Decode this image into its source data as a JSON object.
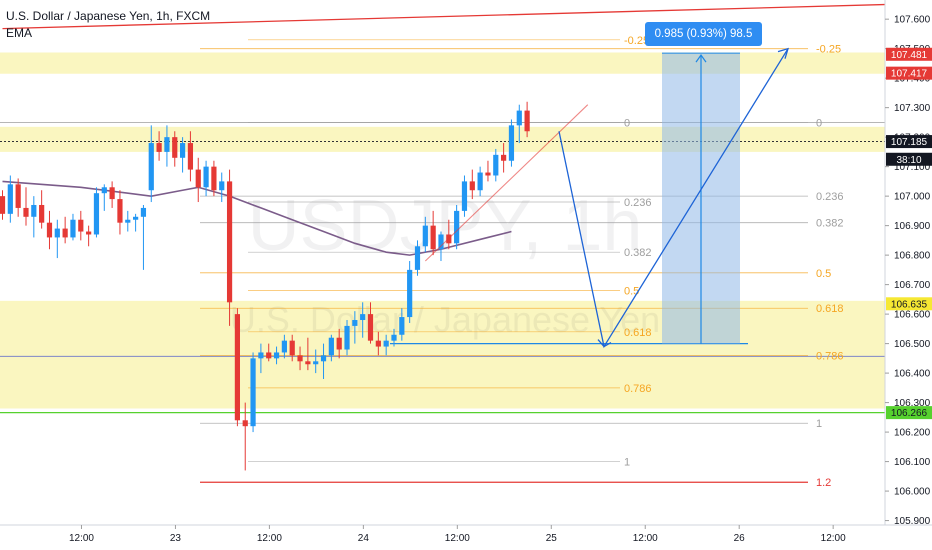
{
  "legend": {
    "symbol": "U.S. Dollar / Japanese Yen, 1h, FXCM",
    "indicator": "EMA"
  },
  "watermark": {
    "ticker": "USDJPY, 1h",
    "name": "U.S. Dollar / Japanese Yen"
  },
  "measure": {
    "label": "0.985 (0.93%) 98.5"
  },
  "colors": {
    "up": "#2196f3",
    "down": "#e53935",
    "zone": "#f5ef8c",
    "ema": "#7b5c8a",
    "trend": "#e53935",
    "fib_blue": "#9e9e9e",
    "fib_orange": "#f5a623",
    "projection": "#1565c0",
    "tag_red": "#e53935",
    "tag_yellow": "#f6e833",
    "tag_green": "#56d12e",
    "tag_dark": "#131722"
  },
  "chart_data": {
    "type": "candlestick",
    "ylim": [
      105.885,
      107.665
    ],
    "price_axis_ticks": [
      "107.600",
      "107.500",
      "107.400",
      "107.300",
      "107.200",
      "107.100",
      "107.000",
      "106.900",
      "106.800",
      "106.700",
      "106.600",
      "106.500",
      "106.400",
      "106.300",
      "106.200",
      "106.100",
      "106.000",
      "105.900"
    ],
    "time_axis_ticks": [
      {
        "label": "12:00",
        "i": 6
      },
      {
        "label": "23",
        "i": 18
      },
      {
        "label": "12:00",
        "i": 30
      },
      {
        "label": "24",
        "i": 42
      },
      {
        "label": "12:00",
        "i": 54
      },
      {
        "label": "25",
        "i": 66
      },
      {
        "label": "12:00",
        "i": 78
      },
      {
        "label": "26",
        "i": 90
      },
      {
        "label": "12:00",
        "i": 102
      }
    ],
    "candles": [
      [
        107.0,
        107.02,
        106.92,
        106.94
      ],
      [
        106.94,
        107.07,
        106.91,
        107.04
      ],
      [
        107.04,
        107.06,
        106.93,
        106.96
      ],
      [
        106.96,
        107.03,
        106.9,
        106.93
      ],
      [
        106.93,
        107.0,
        106.86,
        106.97
      ],
      [
        106.97,
        107.02,
        106.89,
        106.91
      ],
      [
        106.91,
        106.95,
        106.82,
        106.86
      ],
      [
        106.86,
        106.92,
        106.79,
        106.89
      ],
      [
        106.89,
        106.93,
        106.84,
        106.86
      ],
      [
        106.86,
        106.94,
        106.85,
        106.92
      ],
      [
        106.92,
        106.95,
        106.85,
        106.88
      ],
      [
        106.88,
        106.9,
        106.83,
        106.87
      ],
      [
        106.87,
        107.03,
        106.86,
        107.01
      ],
      [
        107.01,
        107.04,
        106.95,
        107.03
      ],
      [
        107.03,
        107.05,
        106.96,
        106.99
      ],
      [
        106.99,
        107.02,
        106.87,
        106.91
      ],
      [
        106.91,
        106.95,
        106.88,
        106.92
      ],
      [
        106.92,
        106.94,
        106.88,
        106.93
      ],
      [
        106.93,
        106.97,
        106.75,
        106.96
      ],
      [
        107.02,
        107.24,
        106.98,
        107.18
      ],
      [
        107.18,
        107.22,
        107.12,
        107.15
      ],
      [
        107.15,
        107.24,
        107.1,
        107.2
      ],
      [
        107.2,
        107.22,
        107.1,
        107.13
      ],
      [
        107.13,
        107.2,
        107.08,
        107.18
      ],
      [
        107.18,
        107.22,
        107.05,
        107.09
      ],
      [
        107.09,
        107.13,
        106.98,
        107.03
      ],
      [
        107.03,
        107.12,
        107.0,
        107.1
      ],
      [
        107.1,
        107.12,
        107.0,
        107.02
      ],
      [
        107.02,
        107.08,
        106.98,
        107.05
      ],
      [
        107.05,
        107.09,
        106.56,
        106.64
      ],
      [
        106.6,
        106.62,
        106.22,
        106.24
      ],
      [
        106.24,
        106.3,
        106.07,
        106.22
      ],
      [
        106.22,
        106.47,
        106.2,
        106.45
      ],
      [
        106.45,
        106.5,
        106.4,
        106.47
      ],
      [
        106.47,
        106.5,
        106.44,
        106.45
      ],
      [
        106.45,
        106.49,
        106.43,
        106.47
      ],
      [
        106.47,
        106.53,
        106.45,
        106.51
      ],
      [
        106.51,
        106.53,
        106.44,
        106.46
      ],
      [
        106.46,
        106.49,
        106.41,
        106.44
      ],
      [
        106.44,
        106.52,
        106.41,
        106.43
      ],
      [
        106.43,
        106.48,
        106.4,
        106.44
      ],
      [
        106.44,
        106.5,
        106.38,
        106.46
      ],
      [
        106.46,
        106.53,
        106.44,
        106.52
      ],
      [
        106.52,
        106.55,
        106.45,
        106.48
      ],
      [
        106.48,
        106.58,
        106.46,
        106.56
      ],
      [
        106.56,
        106.61,
        106.5,
        106.58
      ],
      [
        106.58,
        106.64,
        106.52,
        106.6
      ],
      [
        106.6,
        106.64,
        106.5,
        106.51
      ],
      [
        106.51,
        106.54,
        106.46,
        106.49
      ],
      [
        106.49,
        106.53,
        106.46,
        106.51
      ],
      [
        106.51,
        106.55,
        106.49,
        106.53
      ],
      [
        106.53,
        106.62,
        106.51,
        106.59
      ],
      [
        106.59,
        106.78,
        106.57,
        106.75
      ],
      [
        106.75,
        106.85,
        106.73,
        106.83
      ],
      [
        106.83,
        106.93,
        106.81,
        106.9
      ],
      [
        106.9,
        106.95,
        106.8,
        106.82
      ],
      [
        106.82,
        106.88,
        106.78,
        106.87
      ],
      [
        106.87,
        106.92,
        106.82,
        106.84
      ],
      [
        106.84,
        106.97,
        106.82,
        106.95
      ],
      [
        106.95,
        107.07,
        106.93,
        107.05
      ],
      [
        107.05,
        107.09,
        106.99,
        107.02
      ],
      [
        107.02,
        107.1,
        107.0,
        107.08
      ],
      [
        107.08,
        107.12,
        107.05,
        107.07
      ],
      [
        107.07,
        107.16,
        107.05,
        107.14
      ],
      [
        107.14,
        107.18,
        107.08,
        107.12
      ],
      [
        107.12,
        107.26,
        107.1,
        107.24
      ],
      [
        107.24,
        107.31,
        107.18,
        107.29
      ],
      [
        107.29,
        107.32,
        107.2,
        107.22
      ]
    ],
    "ema": [
      [
        0,
        107.05
      ],
      [
        10,
        107.03
      ],
      [
        19,
        107.0
      ],
      [
        23,
        107.02
      ],
      [
        25,
        107.03
      ],
      [
        29,
        107.0
      ],
      [
        33,
        106.96
      ],
      [
        37,
        106.92
      ],
      [
        41,
        106.88
      ],
      [
        45,
        106.84
      ],
      [
        49,
        106.81
      ],
      [
        52,
        106.8
      ],
      [
        56,
        106.82
      ],
      [
        62,
        106.86
      ],
      [
        65,
        106.88
      ]
    ],
    "trend_line": [
      [
        0,
        107.568
      ],
      [
        108,
        107.65
      ]
    ],
    "trend_up": [
      [
        54,
        106.78
      ],
      [
        69,
        107.31
      ]
    ],
    "zones": [
      [
        107.415,
        107.487
      ],
      [
        107.15,
        107.235
      ],
      [
        106.28,
        106.645
      ]
    ],
    "fib_upper": [
      {
        "label": "0",
        "price": 107.25
      },
      {
        "label": "0.236",
        "price": 107.0
      },
      {
        "label": "0.382",
        "price": 106.91
      },
      {
        "label": "0.5",
        "price": 106.74
      },
      {
        "label": "0.618",
        "price": 106.62
      },
      {
        "label": "0.786",
        "price": 106.46
      },
      {
        "label": "1",
        "price": 106.23
      },
      {
        "label": "1.2",
        "price": 106.03
      },
      {
        "label": "-0.25",
        "price": 107.5
      }
    ],
    "fib_lower": [
      {
        "label": "-0.25",
        "price": 107.53
      },
      {
        "label": "0",
        "price": 107.25
      },
      {
        "label": "0.236",
        "price": 106.98
      },
      {
        "label": "0.382",
        "price": 106.81
      },
      {
        "label": "0.5",
        "price": 106.68
      },
      {
        "label": "0.618",
        "price": 106.54
      },
      {
        "label": "0.786",
        "price": 106.35
      },
      {
        "label": "1",
        "price": 106.1
      },
      {
        "label": "1.2",
        "price": 105.87
      }
    ],
    "projection": [
      [
        69,
        107.22
      ],
      [
        75,
        106.49
      ],
      [
        87,
        107.5
      ]
    ],
    "measure_range": [
      106.5,
      107.485
    ],
    "blue_level": 106.5,
    "red_level": 106.03,
    "tags": [
      {
        "label": "107.481",
        "price": 107.481,
        "kind": "red"
      },
      {
        "label": "107.417",
        "price": 107.417,
        "kind": "red"
      },
      {
        "label": "107.185",
        "price": 107.185,
        "kind": "dark"
      },
      {
        "label": "38:10",
        "price": 107.125,
        "kind": "dark"
      },
      {
        "label": "106.635",
        "price": 106.635,
        "kind": "yellow"
      },
      {
        "label": "106.266",
        "price": 106.266,
        "kind": "green"
      }
    ]
  }
}
